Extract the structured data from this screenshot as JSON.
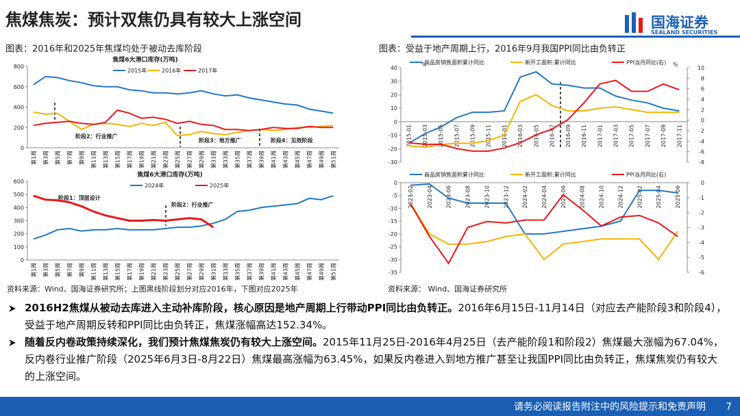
{
  "header": {
    "title": "焦煤焦炭：预计双焦仍具有较大上涨空间",
    "logo_cn": "国海证券",
    "logo_en": "SEALAND SECURITIES"
  },
  "captions": [
    "图表：2016年和2025年焦煤均处于被动去库阶段",
    "图表：受益于地产周期上行，2016年9月我国PPI同比由负转正"
  ],
  "chart_data": [
    {
      "type": "line",
      "title": "焦煤6大港口库存(万吨)",
      "categories": [
        "第1周",
        "第3周",
        "第5周",
        "第7周",
        "第9周",
        "第11周",
        "第13周",
        "第15周",
        "第17周",
        "第19周",
        "第21周",
        "第23周",
        "第25周",
        "第27周",
        "第29周",
        "第31周",
        "第33周",
        "第35周",
        "第37周",
        "第39周",
        "第41周",
        "第43周",
        "第45周",
        "第47周",
        "第49周",
        "第51周"
      ],
      "series": [
        {
          "name": "2015年",
          "color": "#1f77c4",
          "values": [
            620,
            700,
            690,
            660,
            640,
            610,
            600,
            600,
            570,
            560,
            540,
            540,
            530,
            540,
            560,
            530,
            510,
            520,
            490,
            470,
            450,
            430,
            420,
            380,
            360,
            340
          ]
        },
        {
          "name": "2016年",
          "color": "#f5b400",
          "values": [
            350,
            330,
            340,
            260,
            180,
            230,
            240,
            230,
            210,
            240,
            220,
            250,
            120,
            130,
            160,
            140,
            130,
            150,
            170,
            180,
            170,
            180,
            200,
            200,
            210,
            220
          ]
        },
        {
          "name": "2017年",
          "color": "#e8161b",
          "values": [
            220,
            240,
            250,
            260,
            240,
            230,
            250,
            370,
            340,
            290,
            300,
            280,
            240,
            260,
            230,
            220,
            180,
            180,
            170,
            180,
            200,
            190,
            190,
            210,
            200,
            200
          ]
        }
      ],
      "ylim": [
        0,
        800
      ],
      "yticks": [
        0,
        200,
        400,
        600,
        800
      ],
      "annotations": [
        "阶段2：行业推广",
        "阶段3：地方推广",
        "阶段4：见效阶段"
      ]
    },
    {
      "type": "line",
      "title": "焦煤6大港口库存(万吨)",
      "categories": [
        "第1周",
        "第3周",
        "第5周",
        "第7周",
        "第9周",
        "第11周",
        "第13周",
        "第15周",
        "第17周",
        "第19周",
        "第21周",
        "第23周",
        "第25周",
        "第27周",
        "第29周",
        "第31周",
        "第33周",
        "第35周",
        "第37周",
        "第39周",
        "第41周",
        "第43周",
        "第45周",
        "第47周",
        "第49周",
        "第51周"
      ],
      "series": [
        {
          "name": "2024年",
          "color": "#1f77c4",
          "values": [
            160,
            190,
            230,
            240,
            220,
            230,
            230,
            240,
            230,
            230,
            230,
            240,
            250,
            250,
            260,
            280,
            310,
            370,
            380,
            400,
            410,
            420,
            430,
            470,
            460,
            490
          ]
        },
        {
          "name": "2025年",
          "color": "#e8161b",
          "values": [
            490,
            460,
            455,
            440,
            410,
            370,
            340,
            320,
            300,
            300,
            305,
            300,
            310,
            320,
            310,
            250,
            null,
            null,
            null,
            null,
            null,
            null,
            null,
            null,
            null,
            null
          ]
        }
      ],
      "ylim": [
        0,
        600
      ],
      "yticks": [
        0,
        100,
        200,
        300,
        400,
        500,
        600
      ],
      "annotations": [
        "阶段1：顶层设计",
        "阶段2：行业推广"
      ]
    },
    {
      "type": "line",
      "categories": [
        "2015-01",
        "2015-03",
        "2015-05",
        "2015-07",
        "2015-09",
        "2015-11",
        "2016-01",
        "2016-03",
        "2016-05",
        "2016-07",
        "2016-09",
        "2016-11",
        "2017-01",
        "2017-03",
        "2017-05",
        "2017-07",
        "2017-09",
        "2017-11"
      ],
      "series": [
        {
          "name": "商品房销售面积累计同比",
          "color": "#1f77c4",
          "values": [
            -16,
            -9,
            -4,
            3,
            7,
            7,
            8,
            33,
            37,
            28,
            27,
            25,
            25,
            19,
            16,
            14,
            10,
            8
          ]
        },
        {
          "name": "新开工面积:累计同比",
          "color": "#f5b400",
          "values": [
            -18,
            -19,
            -17,
            -16,
            -16,
            -14,
            -10,
            15,
            20,
            12,
            8,
            8,
            10,
            11,
            9,
            7,
            7,
            7
          ]
        },
        {
          "name": "PPI当月同比(右)",
          "color": "#e8161b",
          "axis": "y2",
          "values": [
            -4.3,
            -4.6,
            -4.6,
            -5.4,
            -5.9,
            -5.9,
            -5.3,
            -4.3,
            -2.8,
            -1.7,
            0.1,
            3.3,
            6.9,
            7.6,
            5.5,
            5.5,
            6.9,
            5.8
          ]
        }
      ],
      "ylim": [
        -30,
        40
      ],
      "yticks": [
        -30,
        -20,
        -10,
        0,
        10,
        20,
        30,
        40
      ],
      "y_unit": "%",
      "y2lim": [
        -8,
        10
      ],
      "y2ticks": [
        -8,
        -6,
        -4,
        -2,
        0,
        2,
        4,
        6,
        8,
        10
      ],
      "y2_unit": "%"
    },
    {
      "type": "line",
      "categories": [
        "2023-02",
        "2023-04",
        "2023-06",
        "2023-08",
        "2023-10",
        "2023-12",
        "2024-02",
        "2024-04",
        "2024-06",
        "2024-08",
        "2024-10",
        "2024-12",
        "2025-02",
        "2025-04",
        "2025-06"
      ],
      "series": [
        {
          "name": "商品房销售面积累计同比",
          "color": "#1f77c4",
          "values": [
            -1,
            -0.5,
            -6,
            -8,
            -8,
            -8,
            -20,
            -20,
            -19,
            -18,
            -17,
            -15,
            -3,
            -3,
            -4
          ]
        },
        {
          "name": "新开工面积:累计同比",
          "color": "#f5b400",
          "values": [
            -8,
            -20,
            -24,
            -24,
            -23,
            -21,
            -20,
            -30,
            -24,
            -23,
            -22,
            -22,
            -22,
            -30,
            -19
          ]
        },
        {
          "name": "PPI当月同比(右)",
          "color": "#e8161b",
          "axis": "y2",
          "values": [
            -1.4,
            -3.6,
            -5.4,
            -3,
            -2.6,
            -2.7,
            -2.5,
            -2.5,
            -0.8,
            -1.8,
            -2.9,
            -2.3,
            -2.2,
            -2.7,
            -3.6
          ]
        }
      ],
      "ylim": [
        -35,
        0
      ],
      "yticks": [
        -35,
        -30,
        -25,
        -20,
        -15,
        -10,
        -5,
        0
      ],
      "y2lim": [
        -6,
        0
      ],
      "y2ticks": [
        -6,
        -5,
        -4,
        -3,
        -2,
        -1,
        0
      ]
    }
  ],
  "sources": [
    "资料来源：Wind、国海证券研究所；上图黑线阶段划分对应2016年，下图对应2025年",
    "资料来源： Wind、国海证券研究所"
  ],
  "bullets": [
    {
      "bold": "2016H2焦煤从被动去库进入主动补库阶段，核心原因是地产周期上行带动PPI同比由负转正。",
      "text": "2016年6月15日-11月14日（对应去产能阶段3和阶段4），受益于地产周期反转和PPI同比由负转正，焦煤涨幅高达152.34%。"
    },
    {
      "bold": "随着反内卷政策持续深化，我们预计焦煤焦炭仍有较大上涨空间。",
      "text": "2015年11月25日-2016年4月25日（去产能阶段1和阶段2）焦煤最大涨幅为67.04%，反内卷行业推广阶段（2025年6月3日-8月22日）焦煤最高涨幅为63.45%，如果反内卷进入到地方推广甚至让我国PPI同比由负转正，焦煤焦炭仍有较大的上涨空间。"
    }
  ],
  "footer": {
    "text": "请务必阅读报告附注中的风险提示和免责声明",
    "page": "7"
  }
}
